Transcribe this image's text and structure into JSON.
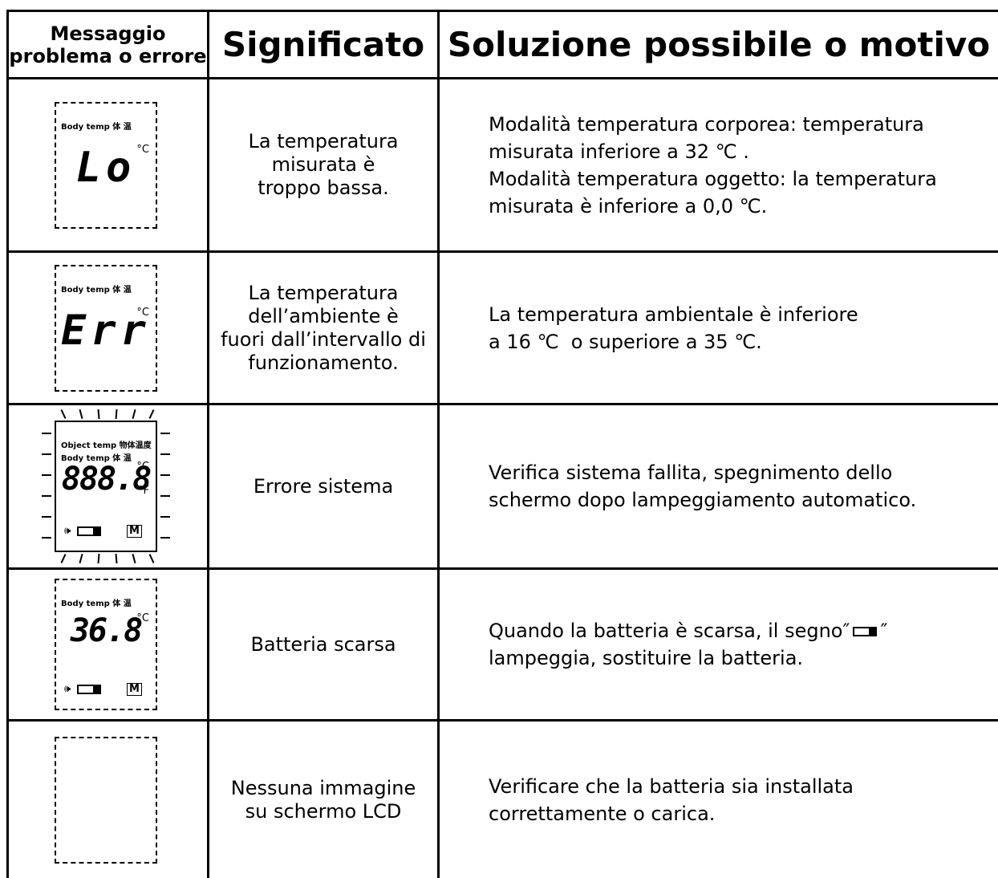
{
  "table": {
    "header": [
      [
        "Messaggio",
        "problema o errore"
      ],
      [
        "Significato"
      ],
      [
        "Soluzione possibile o motivo"
      ]
    ],
    "rows": [
      {
        "display": {
          "labels": [
            "Body temp 体 温"
          ],
          "unit": "°C",
          "readout": "Lo"
        },
        "meaning": [
          "La temperatura",
          "misurata è",
          "troppo bassa."
        ],
        "solution": [
          "Modalità temperatura corporea: temperatura",
          "misurata inferiore a 32 ℃ .",
          "Modalità temperatura oggetto: la temperatura",
          "misurata è inferiore a 0,0 ℃."
        ]
      },
      {
        "display": {
          "labels": [
            "Body temp 体 温"
          ],
          "unit": "°C",
          "readout": "Err"
        },
        "meaning": [
          "La temperatura",
          "dell’ambiente è",
          "fuori dall’intervallo di",
          "funzionamento."
        ],
        "solution": [
          "La temperatura ambientale è inferiore",
          "a 16 ℃  o superiore a 35 ℃."
        ]
      },
      {
        "display": {
          "labels": [
            "Object temp 物体温度",
            "Body temp 体 温"
          ],
          "unit": "°C",
          "unit2": "°F",
          "readout": "888.8",
          "mode": "M"
        },
        "meaning": [
          "Errore sistema"
        ],
        "solution": [
          "Verifica sistema fallita, spegnimento dello",
          "schermo dopo lampeggiamento automatico."
        ]
      },
      {
        "display": {
          "labels": [
            "Body temp 体 温"
          ],
          "unit": "°C",
          "readout": "36.8",
          "mode": "M"
        },
        "meaning": [
          "Batteria scarsa"
        ],
        "solution": [
          {
            "before": "Quando la batteria è scarsa, il segno″",
            "after": "″"
          },
          "lampeggia, sostituire la batteria."
        ]
      },
      {
        "display": {},
        "meaning": [
          "Nessuna immagine",
          "su schermo LCD"
        ],
        "solution": [
          "Verificare che la batteria sia installata",
          "correttamente o carica."
        ]
      }
    ]
  }
}
